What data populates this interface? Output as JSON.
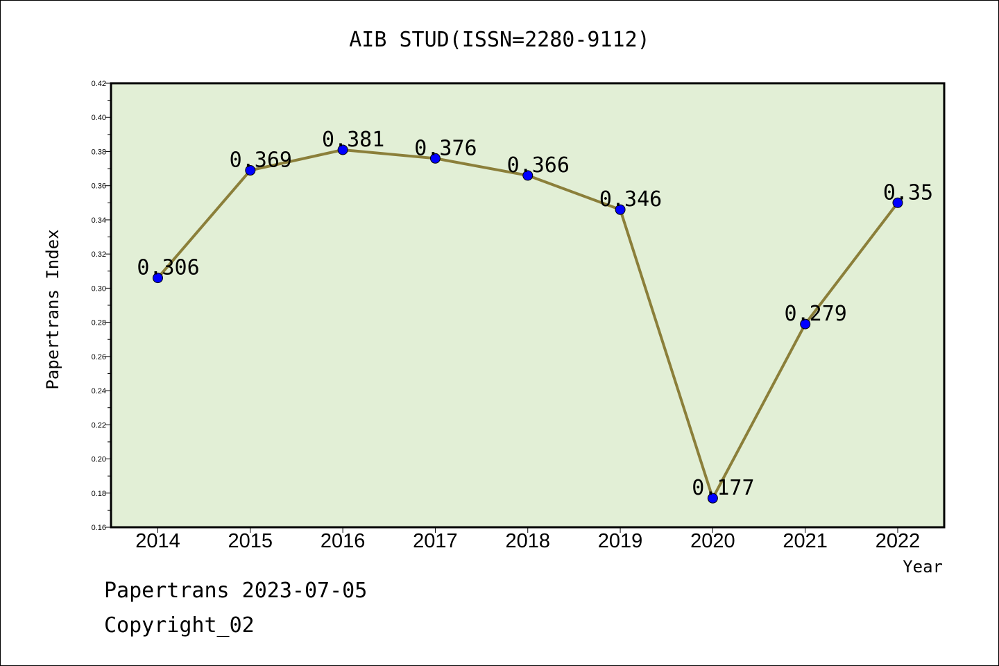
{
  "chart_data": {
    "type": "line",
    "title": "AIB STUD(ISSN=2280-9112)",
    "xlabel": "Year",
    "ylabel": "Papertrans Index",
    "categories": [
      "2014",
      "2015",
      "2016",
      "2017",
      "2018",
      "2019",
      "2020",
      "2021",
      "2022"
    ],
    "values": [
      0.306,
      0.369,
      0.381,
      0.376,
      0.366,
      0.346,
      0.177,
      0.279,
      0.35
    ],
    "data_labels": [
      "0.306",
      "0.369",
      "0.381",
      "0.376",
      "0.366",
      "0.346",
      "0.177",
      "0.279",
      "0.35"
    ],
    "ylim": [
      0.16,
      0.42
    ],
    "yticks": [
      "0.16",
      "0.18",
      "0.20",
      "0.22",
      "0.24",
      "0.26",
      "0.28",
      "0.30",
      "0.32",
      "0.34",
      "0.36",
      "0.38",
      "0.40",
      "0.42"
    ],
    "grid": false,
    "colors": {
      "line": "#8b7f3a",
      "marker": "#0000ff",
      "plot_background": "#e2efd6"
    }
  },
  "footer": {
    "date_line": "Papertrans 2023-07-05",
    "copyright": "Copyright_02"
  }
}
